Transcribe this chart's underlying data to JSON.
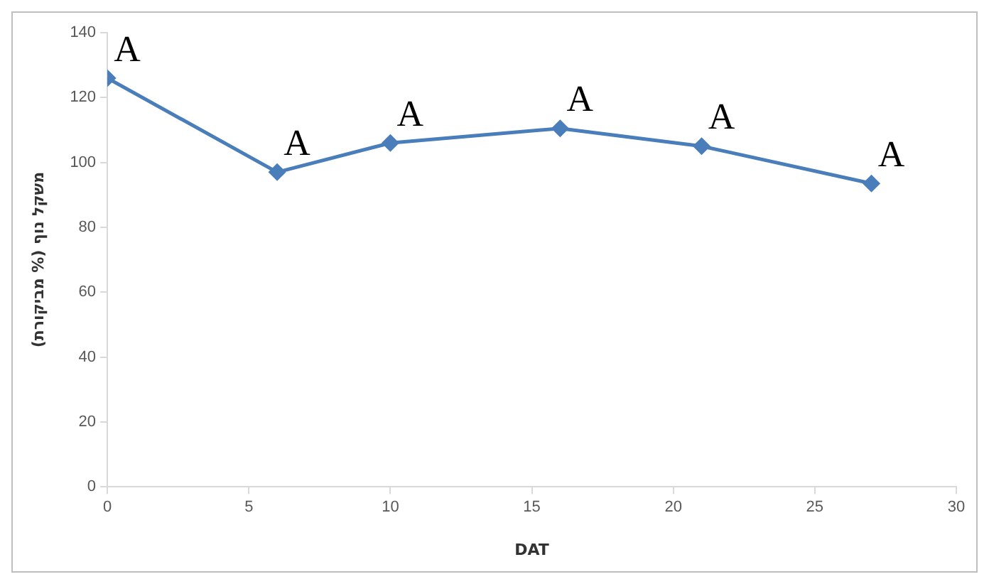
{
  "chart_data": {
    "type": "line",
    "xlabel": "DAT",
    "ylabel": "משקל נוף (% מביקורת)",
    "x": [
      0,
      6,
      10,
      16,
      21,
      27
    ],
    "series": [
      {
        "color": "#4a7ebb",
        "values": [
          126,
          97,
          106,
          110.5,
          105,
          93.5
        ]
      }
    ],
    "xlim": [
      0,
      30
    ],
    "xticks": [
      0,
      5,
      10,
      15,
      20,
      25,
      30
    ],
    "ylim": [
      0,
      140
    ],
    "yticks": [
      0,
      20,
      40,
      60,
      80,
      100,
      120,
      140
    ],
    "grid": false,
    "legend": false,
    "marker": "diamond",
    "line_style": "solid",
    "annotations": [
      {
        "text": "A",
        "x": 0,
        "y": 126
      },
      {
        "text": "A",
        "x": 6,
        "y": 97
      },
      {
        "text": "A",
        "x": 10,
        "y": 106
      },
      {
        "text": "A",
        "x": 16,
        "y": 110.5
      },
      {
        "text": "A",
        "x": 21,
        "y": 105
      },
      {
        "text": "A",
        "x": 27,
        "y": 93.5
      }
    ]
  }
}
